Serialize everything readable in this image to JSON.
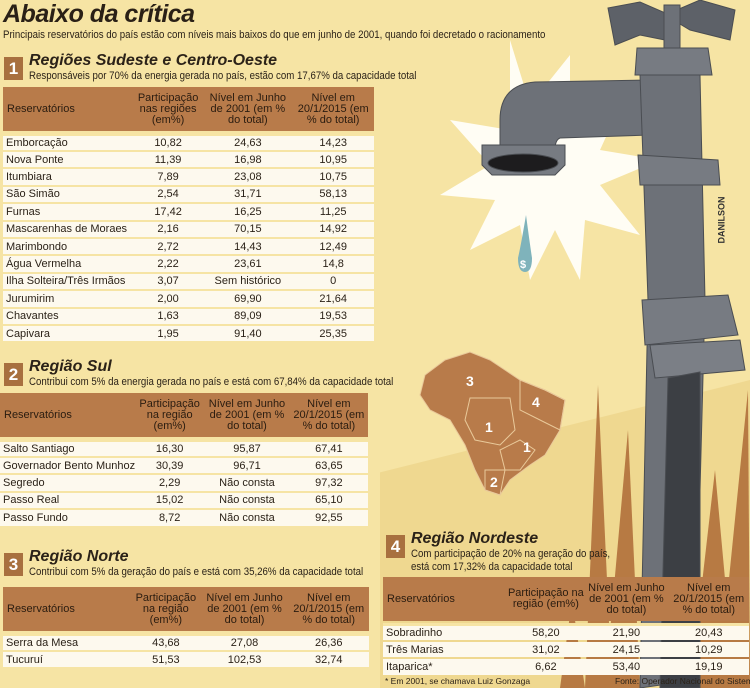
{
  "title": "Abaixo da crítica",
  "subtitle": "Principais reservatórios do país estão com níveis mais baixos do que em junho de 2001, quando foi decretado o racionamento",
  "colors": {
    "background": "#f6e4a4",
    "header": "#b87b4a",
    "number_box": "#a8703f",
    "faucet": "#6d7178"
  },
  "sections": [
    {
      "number": "1",
      "title": "Regiões Sudeste e Centro-Oeste",
      "desc": "Responsáveis por 70% da energia gerada no país, estão com 17,67% da capacidade total",
      "headers": [
        "Reservatórios",
        "Participação nas regiões (em%)",
        "Nível em Junho de 2001 (em % do total)",
        "Nível em 20/1/2015 (em % do total)"
      ],
      "rows": [
        [
          "Emborcação",
          "10,82",
          "24,63",
          "14,23"
        ],
        [
          "Nova Ponte",
          "11,39",
          "16,98",
          "10,95"
        ],
        [
          "Itumbiara",
          "7,89",
          "23,08",
          "10,75"
        ],
        [
          "São Simão",
          "2,54",
          "31,71",
          "58,13"
        ],
        [
          "Furnas",
          "17,42",
          "16,25",
          "11,25"
        ],
        [
          "Mascarenhas de Moraes",
          "2,16",
          "70,15",
          "14,92"
        ],
        [
          "Marimbondo",
          "2,72",
          "14,43",
          "12,49"
        ],
        [
          "Água Vermelha",
          "2,22",
          "23,61",
          "14,8"
        ],
        [
          "Ilha Solteira/Três Irmãos",
          "3,07",
          "Sem histórico",
          "0"
        ],
        [
          "Jurumirim",
          "2,00",
          "69,90",
          "21,64"
        ],
        [
          "Chavantes",
          "1,63",
          "89,09",
          "19,53"
        ],
        [
          "Capivara",
          "1,95",
          "91,40",
          "25,35"
        ]
      ]
    },
    {
      "number": "2",
      "title": "Região Sul",
      "desc": "Contribui com 5% da energia gerada no país e está com 67,84% da capacidade total",
      "headers": [
        "Reservatórios",
        "Participação na região (em%)",
        "Nível em Junho de 2001 (em % do total)",
        "Nível em 20/1/2015 (em % do total)"
      ],
      "rows": [
        [
          "Salto Santiago",
          "16,30",
          "95,87",
          "67,41"
        ],
        [
          "Governador Bento Munhoz",
          "30,39",
          "96,71",
          "63,65"
        ],
        [
          "Segredo",
          "2,29",
          "Não consta",
          "97,32"
        ],
        [
          "Passo Real",
          "15,02",
          "Não consta",
          "65,10"
        ],
        [
          "Passo Fundo",
          "8,72",
          "Não consta",
          "92,55"
        ]
      ]
    },
    {
      "number": "3",
      "title": "Região Norte",
      "desc": "Contribui com 5% da geração do país e está com 35,26% da capacidade total",
      "headers": [
        "Reservatórios",
        "Participação na região (em%)",
        "Nível em Junho de 2001 (em % do total)",
        "Nível em 20/1/2015 (em % do total)"
      ],
      "rows": [
        [
          "Serra da Mesa",
          "43,68",
          "27,08",
          "26,36"
        ],
        [
          "Tucuruí",
          "51,53",
          "102,53",
          "32,74"
        ]
      ]
    },
    {
      "number": "4",
      "title": "Região Nordeste",
      "desc": "Com participação de 20% na geração do país, está com 17,32% da capacidade total",
      "headers": [
        "Reservatórios",
        "Participação na região (em%)",
        "Nível em Junho de 2001 (em % do total)",
        "Nível em 20/1/2015 (em % do total)"
      ],
      "rows": [
        [
          "Sobradinho",
          "58,20",
          "21,90",
          "20,43"
        ],
        [
          "Três Marias",
          "31,02",
          "24,15",
          "10,29"
        ],
        [
          "Itaparica*",
          "6,62",
          "53,40",
          "19,19"
        ]
      ]
    }
  ],
  "footnote": "* Em 2001, se chamava Luiz Gonzaga",
  "source": "Fonte: Operador Nacional do Sistema",
  "map_labels": [
    "3",
    "4",
    "1",
    "1",
    "2"
  ],
  "signature": "DANILSON",
  "drop_symbol": "$"
}
